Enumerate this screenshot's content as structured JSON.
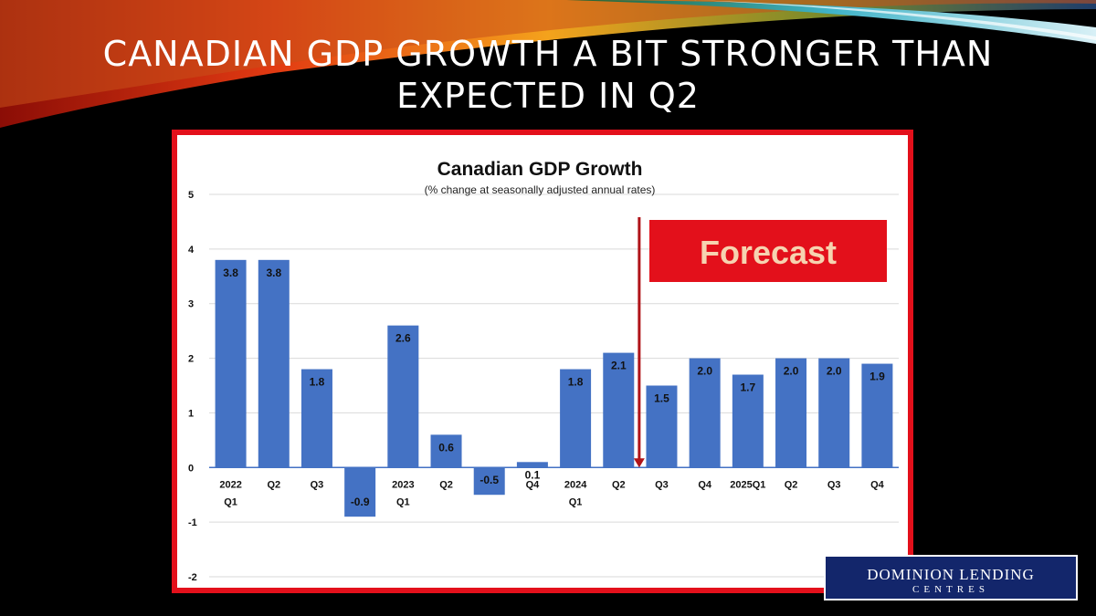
{
  "slide": {
    "title": "CANADIAN GDP GROWTH A BIT STRONGER THAN EXPECTED IN Q2"
  },
  "logo": {
    "main": "DOMINION LENDING",
    "sub": "CENTRES"
  },
  "colors": {
    "bar": "#4472c4",
    "frame": "#e3101b",
    "forecast_box": "#e3101b",
    "forecast_text": "#f6d3b0",
    "arrow": "#b01419"
  },
  "chart_data": {
    "type": "bar",
    "title": "Canadian GDP Growth",
    "subtitle": "(% change at seasonally adjusted annual rates)",
    "categories": [
      [
        "2022",
        "Q1"
      ],
      [
        "Q2"
      ],
      [
        "Q3"
      ],
      [
        ""
      ],
      [
        "2023",
        "Q1"
      ],
      [
        "Q2"
      ],
      [
        ""
      ],
      [
        "Q4"
      ],
      [
        "2024",
        "Q1"
      ],
      [
        "Q2"
      ],
      [
        "Q3"
      ],
      [
        "Q4"
      ],
      [
        "2025Q1"
      ],
      [
        "Q2"
      ],
      [
        "Q3"
      ],
      [
        "Q4"
      ]
    ],
    "values": [
      3.8,
      3.8,
      1.8,
      -0.9,
      2.6,
      0.6,
      -0.5,
      0.1,
      1.8,
      2.1,
      1.5,
      2.0,
      1.7,
      2.0,
      2.0,
      1.9
    ],
    "data_labels": [
      "3.8",
      "3.8",
      "1.8",
      "-0.9",
      "2.6",
      "0.6",
      "-0.5",
      "0.1",
      "1.8",
      "2.1",
      "1.5",
      "2.0",
      "1.7",
      "2.0",
      "2.0",
      "1.9"
    ],
    "ylim": [
      -2,
      5
    ],
    "yticks": [
      "-2",
      "-1",
      "0",
      "1",
      "2",
      "3",
      "4",
      "5"
    ],
    "grid": true,
    "annotation": {
      "label": "Forecast",
      "after_category_index": 9
    }
  }
}
